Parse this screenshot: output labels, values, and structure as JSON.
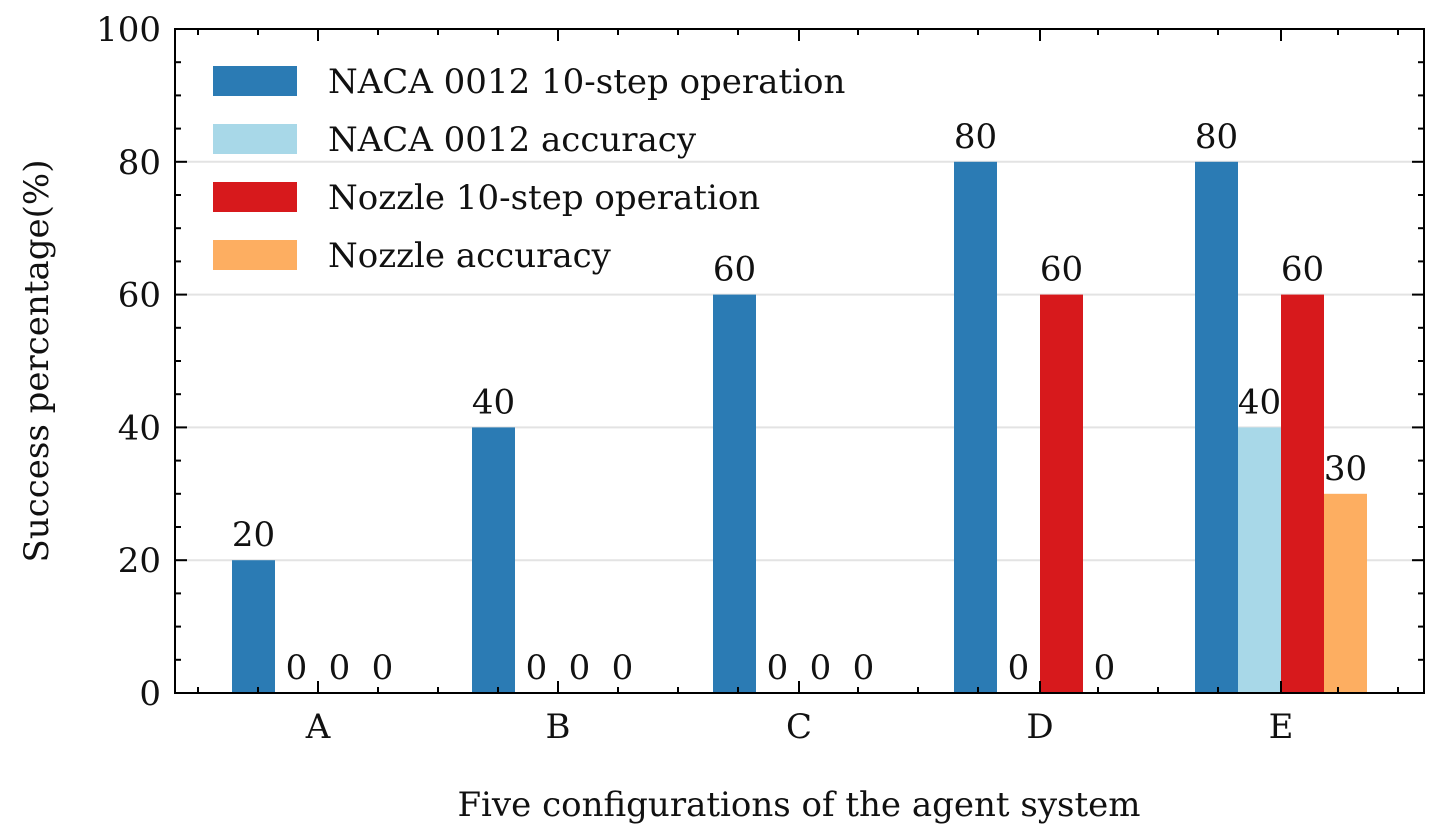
{
  "chart_data": {
    "type": "bar",
    "title": "",
    "xlabel": "Five configurations of the agent system",
    "ylabel": "Success percentage(%)",
    "categories": [
      "A",
      "B",
      "C",
      "D",
      "E"
    ],
    "ylim": [
      0,
      100
    ],
    "yticks": [
      0,
      20,
      40,
      60,
      80,
      100
    ],
    "ytick_labels": [
      "0",
      "20",
      "40",
      "60",
      "80",
      "100"
    ],
    "grid": "horizontal",
    "legend_position": "top-left",
    "series": [
      {
        "name": "NACA 0012 10-step operation",
        "color": "#2b7bb4",
        "values": [
          20,
          40,
          60,
          80,
          80
        ],
        "labels": [
          "20",
          "40",
          "60",
          "80",
          "80"
        ]
      },
      {
        "name": "NACA 0012 accuracy",
        "color": "#a8d8e8",
        "values": [
          0,
          0,
          0,
          0,
          40
        ],
        "labels": [
          "0",
          "0",
          "0",
          "0",
          "40"
        ]
      },
      {
        "name": "Nozzle 10-step operation",
        "color": "#d7191c",
        "values": [
          0,
          0,
          0,
          60,
          60
        ],
        "labels": [
          "0",
          "0",
          "0",
          "60",
          "60"
        ]
      },
      {
        "name": "Nozzle accuracy",
        "color": "#fdae61",
        "values": [
          0,
          0,
          0,
          0,
          30
        ],
        "labels": [
          "0",
          "0",
          "0",
          "0",
          "30"
        ]
      }
    ]
  }
}
